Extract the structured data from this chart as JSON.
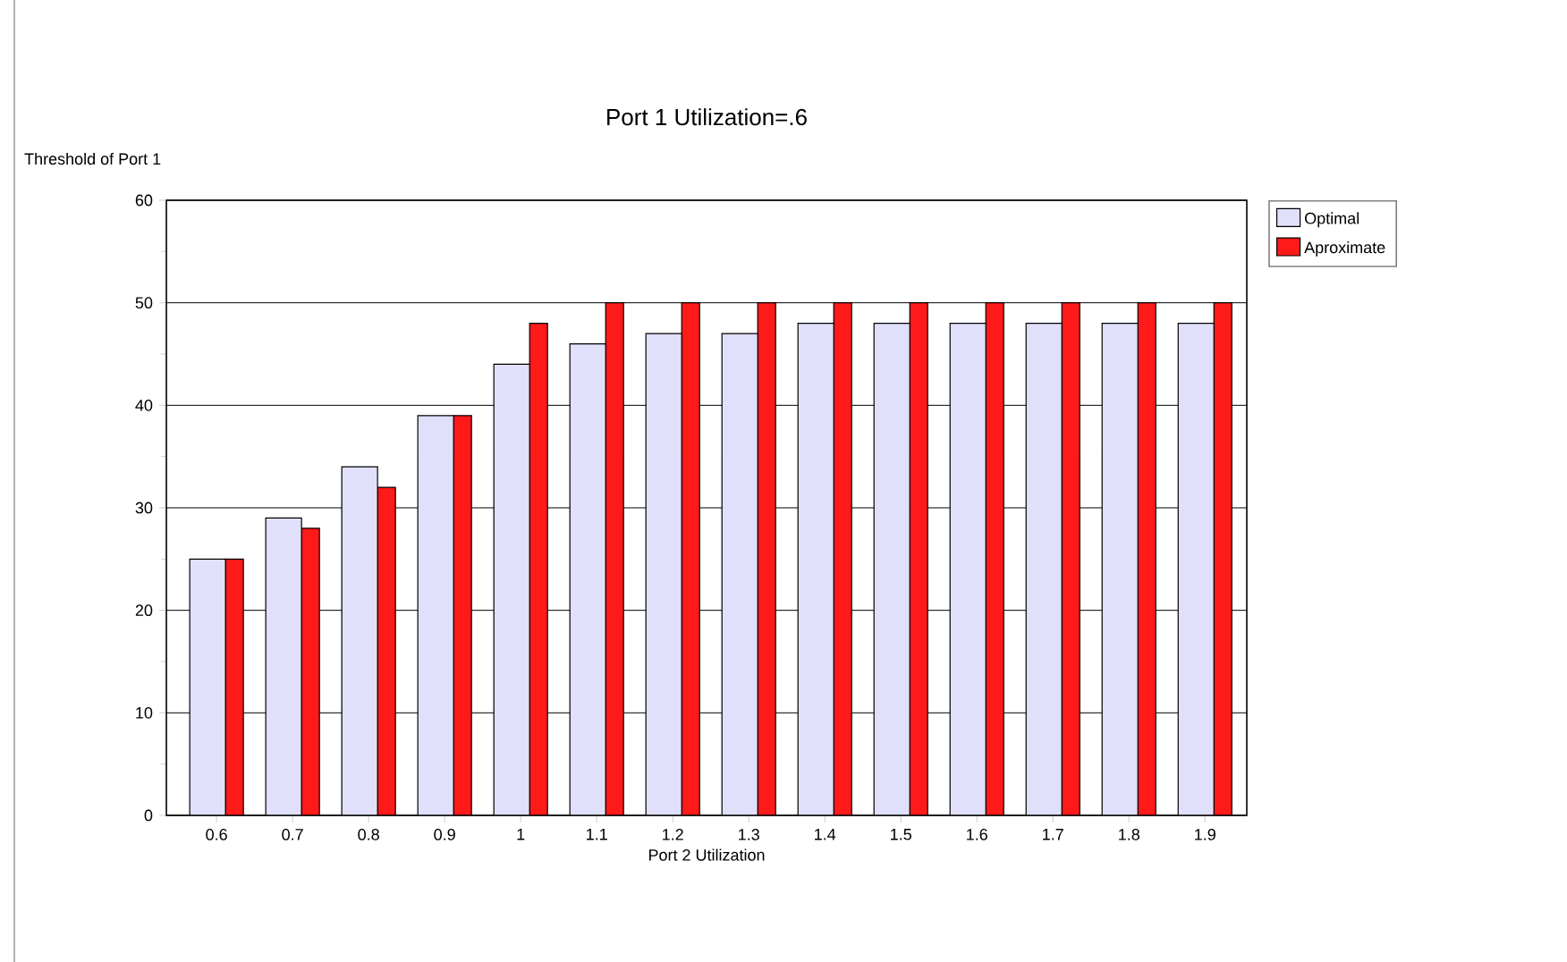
{
  "chart_data": {
    "type": "bar",
    "title": "Port 1 Utilization=.6",
    "xlabel": "Port 2 Utilization",
    "ylabel": "Threshold of Port 1",
    "categories": [
      "0.6",
      "0.7",
      "0.8",
      "0.9",
      "1",
      "1.1",
      "1.2",
      "1.3",
      "1.4",
      "1.5",
      "1.6",
      "1.7",
      "1.8",
      "1.9"
    ],
    "series": [
      {
        "name": "Optimal",
        "color": "#e0e0fa",
        "values": [
          25,
          29,
          34,
          39,
          44,
          46,
          47,
          47,
          48,
          48,
          48,
          48,
          48,
          48
        ]
      },
      {
        "name": "Aproximate",
        "color": "#ff1a1a",
        "values": [
          25,
          28,
          32,
          39,
          48,
          50,
          50,
          50,
          50,
          50,
          50,
          50,
          50,
          50
        ]
      }
    ],
    "ylim": [
      0,
      60
    ],
    "yticks": [
      0,
      10,
      20,
      30,
      40,
      50,
      60
    ],
    "grid": "y",
    "legend": "top right"
  }
}
